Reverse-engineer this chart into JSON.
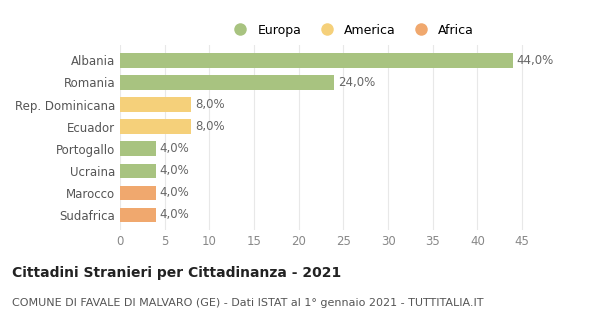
{
  "categories": [
    "Albania",
    "Romania",
    "Rep. Dominicana",
    "Ecuador",
    "Portogallo",
    "Ucraina",
    "Marocco",
    "Sudafrica"
  ],
  "values": [
    44.0,
    24.0,
    8.0,
    8.0,
    4.0,
    4.0,
    4.0,
    4.0
  ],
  "colors": [
    "#a8c380",
    "#a8c380",
    "#f5d07a",
    "#f5d07a",
    "#a8c380",
    "#a8c380",
    "#f0a86e",
    "#f0a86e"
  ],
  "legend_labels": [
    "Europa",
    "America",
    "Africa"
  ],
  "legend_colors": [
    "#a8c380",
    "#f5d07a",
    "#f0a86e"
  ],
  "title": "Cittadini Stranieri per Cittadinanza - 2021",
  "subtitle": "COMUNE DI FAVALE DI MALVARO (GE) - Dati ISTAT al 1° gennaio 2021 - TUTTITALIA.IT",
  "xlim": [
    0,
    47
  ],
  "xticks": [
    0,
    5,
    10,
    15,
    20,
    25,
    30,
    35,
    40,
    45
  ],
  "bg_color": "#ffffff",
  "grid_color": "#e8e8e8",
  "bar_height": 0.65,
  "label_fontsize": 8.5,
  "title_fontsize": 10,
  "subtitle_fontsize": 8,
  "legend_fontsize": 9
}
